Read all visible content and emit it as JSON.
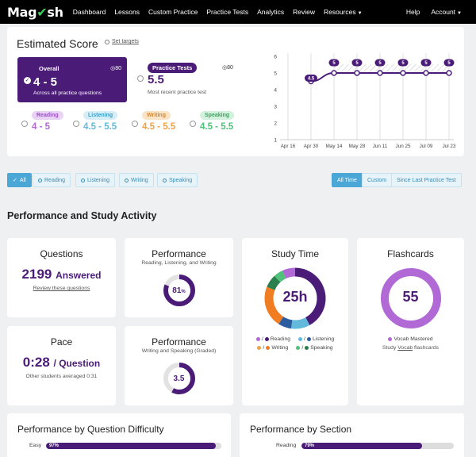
{
  "nav": {
    "logo_prefix": "Mag",
    "logo_suffix": "sh",
    "items": [
      "Dashboard",
      "Lessons",
      "Custom Practice",
      "Practice Tests",
      "Analytics",
      "Review",
      "Resources"
    ],
    "right_items": [
      "Help",
      "Account"
    ]
  },
  "estimated": {
    "title": "Estimated Score",
    "set_targets": "Set targets",
    "overall": {
      "label": "Overall",
      "target": "80",
      "value": "4 - 5",
      "sub": "Across all practice questions"
    },
    "practice_tests": {
      "label": "Practice Tests",
      "target": "80",
      "value": "5.5",
      "sub": "Most recent practice test"
    },
    "skills": [
      {
        "label": "Reading",
        "value": "4 - 5",
        "color": "#b169d6"
      },
      {
        "label": "Listening",
        "value": "4.5 - 5.5",
        "color": "#63b9dc"
      },
      {
        "label": "Writing",
        "value": "4.5 - 5.5",
        "color": "#f0a34a"
      },
      {
        "label": "Speaking",
        "value": "4.5 - 5.5",
        "color": "#4fc17a"
      }
    ]
  },
  "chart_data": {
    "type": "line",
    "x": [
      "Apr 16",
      "Apr 30",
      "May 14",
      "May 28",
      "Jun 11",
      "Jun 25",
      "Jul 09",
      "Jul 23"
    ],
    "y_ticks": [
      "6",
      "5",
      "4",
      "3",
      "2",
      "1"
    ],
    "ylim": [
      1,
      6
    ],
    "series": [
      {
        "points": [
          {
            "x": "Apr 30",
            "y": 4.5
          },
          {
            "x": "May 14",
            "y": 5
          },
          {
            "x": "May 28",
            "y": 5
          },
          {
            "x": "Jun 11",
            "y": 5
          },
          {
            "x": "Jun 25",
            "y": 5
          },
          {
            "x": "Jul 09",
            "y": 5
          },
          {
            "x": "Jul 23",
            "y": 5
          }
        ],
        "labels": [
          "4.5",
          "5",
          "5",
          "5",
          "5",
          "5",
          "5"
        ],
        "color": "#4b1b78"
      }
    ]
  },
  "filters": {
    "skills": [
      "All",
      "Reading",
      "Listening",
      "Writing",
      "Speaking"
    ],
    "time": [
      "All Time",
      "Custom",
      "Since Last Practice Test"
    ]
  },
  "performance_section": {
    "title": "Performance and Study Activity",
    "questions": {
      "title": "Questions",
      "count": "2199",
      "count_label": "Answered",
      "link": "Review these questions"
    },
    "perf_rlw": {
      "title": "Performance",
      "sub": "Reading, Listening, and Writing",
      "value": "81",
      "unit": "%",
      "fraction": 0.81
    },
    "study_time": {
      "title": "Study Time",
      "value": "25h",
      "legend": [
        "Reading",
        "Listening",
        "Writing",
        "Speaking"
      ]
    },
    "flashcards": {
      "title": "Flashcards",
      "value": "55",
      "legend": "Vocab Mastered",
      "link_prefix": "Study ",
      "link_word": "Vocab",
      "link_suffix": " flashcards"
    },
    "pace": {
      "title": "Pace",
      "value": "0:28",
      "unit": "/ Question",
      "sub": "Other students averaged 0:31"
    },
    "perf_ws": {
      "title": "Performance",
      "sub": "Writing and Speaking (Graded)",
      "value": "3.5",
      "fraction": 0.58
    }
  },
  "difficulty": {
    "title": "Performance by Question Difficulty",
    "rows": [
      {
        "label": "Easy",
        "value": "97%",
        "fraction": 0.97
      }
    ]
  },
  "by_section": {
    "title": "Performance by Section",
    "rows": [
      {
        "label": "Reading",
        "value": "79%",
        "fraction": 0.79
      }
    ]
  }
}
